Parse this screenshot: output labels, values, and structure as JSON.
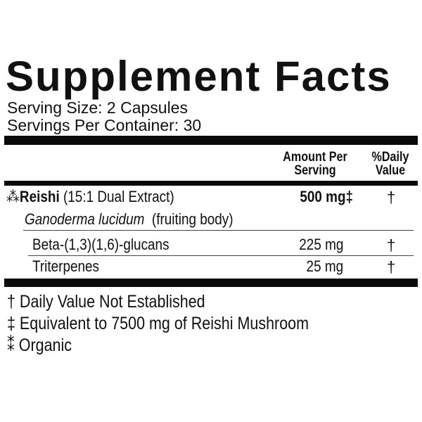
{
  "title": "Supplement Facts",
  "serving_size": "Serving Size: 2 Capsules",
  "servings_per_container": "Servings Per Container: 30",
  "headers": {
    "amount_line1": "Amount Per",
    "amount_line2": "Serving",
    "dv_line1": "%Daily",
    "dv_line2": "Value"
  },
  "rows": [
    {
      "symbol": "⁂",
      "name": "Reishi",
      "detail": "(15:1 Dual Extract)",
      "amount": "500 mg‡",
      "dv": "†"
    },
    {
      "name": "Ganoderma lucidum",
      "detail": "(fruiting body)"
    },
    {
      "name": "Beta-(1,3)(1,6)-glucans",
      "amount": "225 mg",
      "dv": "†"
    },
    {
      "name": "Triterpenes",
      "amount": "25 mg",
      "dv": "†"
    }
  ],
  "footnotes": [
    "† Daily Value Not Established",
    "‡ Equivalent to 7500 mg of Reishi Mushroom",
    "⁑ Organic"
  ]
}
